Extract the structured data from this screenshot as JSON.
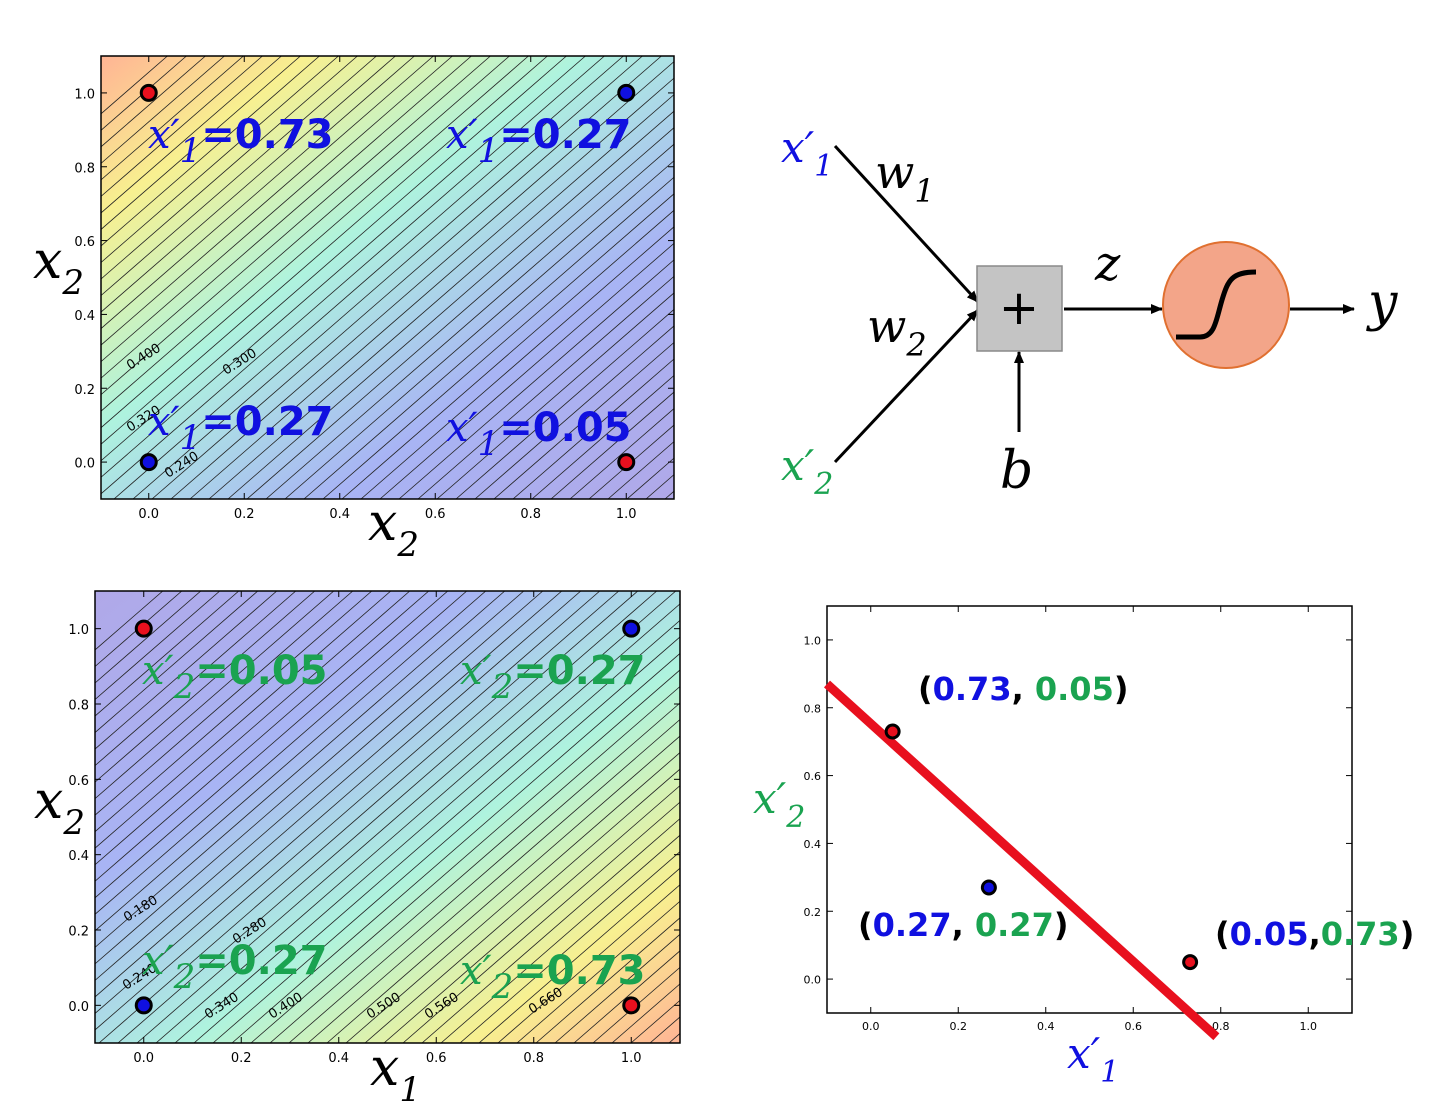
{
  "colors": {
    "blue": "#1010e0",
    "green": "#1aa350",
    "red": "#e8101e",
    "black": "#000000",
    "sigmoid_fill": "#f3a589",
    "sigmoid_stroke": "#e07030",
    "sum_fill": "#c4c4c4"
  },
  "axis_ticks": [
    "0.0",
    "0.2",
    "0.4",
    "0.6",
    "0.8",
    "1.0"
  ],
  "top_left": {
    "xlabel": "x",
    "xlabel_sub": "2",
    "ylabel": "x",
    "ylabel_sub": "2",
    "contour_labels": [
      "0.400",
      "0.300",
      "0.320",
      "0.240"
    ],
    "annotations": [
      {
        "pre": "x′",
        "sub": "1",
        "value": "=0.73"
      },
      {
        "pre": "x′",
        "sub": "1",
        "value": "=0.27"
      },
      {
        "pre": "x′",
        "sub": "1",
        "value": "=0.27"
      },
      {
        "pre": "x′",
        "sub": "1",
        "value": "=0.05"
      }
    ]
  },
  "bottom_left": {
    "xlabel": "x",
    "xlabel_sub": "1",
    "ylabel": "x",
    "ylabel_sub": "2",
    "contour_labels": [
      "0.180",
      "0.280",
      "0.240",
      "0.340",
      "0.400",
      "0.500",
      "0.560",
      "0.660"
    ],
    "annotations": [
      {
        "pre": "x′",
        "sub": "2",
        "value": "=0.05"
      },
      {
        "pre": "x′",
        "sub": "2",
        "value": "=0.27"
      },
      {
        "pre": "x′",
        "sub": "2",
        "value": "=0.27"
      },
      {
        "pre": "x′",
        "sub": "2",
        "value": "=0.73"
      }
    ]
  },
  "neuron": {
    "input1": "x′",
    "input1_sub": "1",
    "input2": "x′",
    "input2_sub": "2",
    "w1": "w",
    "w1_sub": "1",
    "w2": "w",
    "w2_sub": "2",
    "sum_symbol": "+",
    "z": "z",
    "b": "b",
    "y": "y"
  },
  "bottom_right": {
    "xlabel": "x′",
    "xlabel_sub": "1",
    "ylabel": "x′",
    "ylabel_sub": "2",
    "pairs": [
      {
        "a": "0.73",
        "b": "0.05",
        "sep": ", "
      },
      {
        "a": "0.27",
        "b": "0.27",
        "sep": ", "
      },
      {
        "a": "0.05",
        "b": "0.73",
        "sep": ","
      }
    ]
  },
  "chart_data": [
    {
      "type": "scatter",
      "title": "",
      "xlabel": "x2",
      "ylabel": "x2",
      "xlim": [
        -0.1,
        1.1
      ],
      "ylim": [
        -0.1,
        1.1
      ],
      "points": [
        {
          "x": 0,
          "y": 1,
          "color": "red"
        },
        {
          "x": 1,
          "y": 1,
          "color": "blue"
        },
        {
          "x": 0,
          "y": 0,
          "color": "blue"
        },
        {
          "x": 1,
          "y": 0,
          "color": "red"
        }
      ],
      "contour_values": [
        0.4,
        0.3,
        0.32,
        0.24
      ],
      "grid": false
    },
    {
      "type": "scatter",
      "title": "",
      "xlabel": "x1",
      "ylabel": "x2",
      "xlim": [
        -0.1,
        1.1
      ],
      "ylim": [
        -0.1,
        1.1
      ],
      "points": [
        {
          "x": 0,
          "y": 1,
          "color": "red"
        },
        {
          "x": 1,
          "y": 1,
          "color": "blue"
        },
        {
          "x": 0,
          "y": 0,
          "color": "blue"
        },
        {
          "x": 1,
          "y": 0,
          "color": "red"
        }
      ],
      "contour_values": [
        0.18,
        0.28,
        0.24,
        0.34,
        0.4,
        0.5,
        0.56,
        0.66
      ],
      "grid": false
    },
    {
      "type": "scatter",
      "title": "",
      "xlabel": "x′1",
      "ylabel": "x′2",
      "xlim": [
        -0.1,
        1.1
      ],
      "ylim": [
        -0.1,
        1.1
      ],
      "points": [
        {
          "x": 0.05,
          "y": 0.73,
          "color": "red"
        },
        {
          "x": 0.27,
          "y": 0.27,
          "color": "blue"
        },
        {
          "x": 0.73,
          "y": 0.05,
          "color": "red"
        }
      ],
      "decision_line": {
        "from": [
          -0.1,
          0.87
        ],
        "to": [
          0.79,
          -0.17
        ],
        "color": "red"
      },
      "grid": false
    }
  ]
}
